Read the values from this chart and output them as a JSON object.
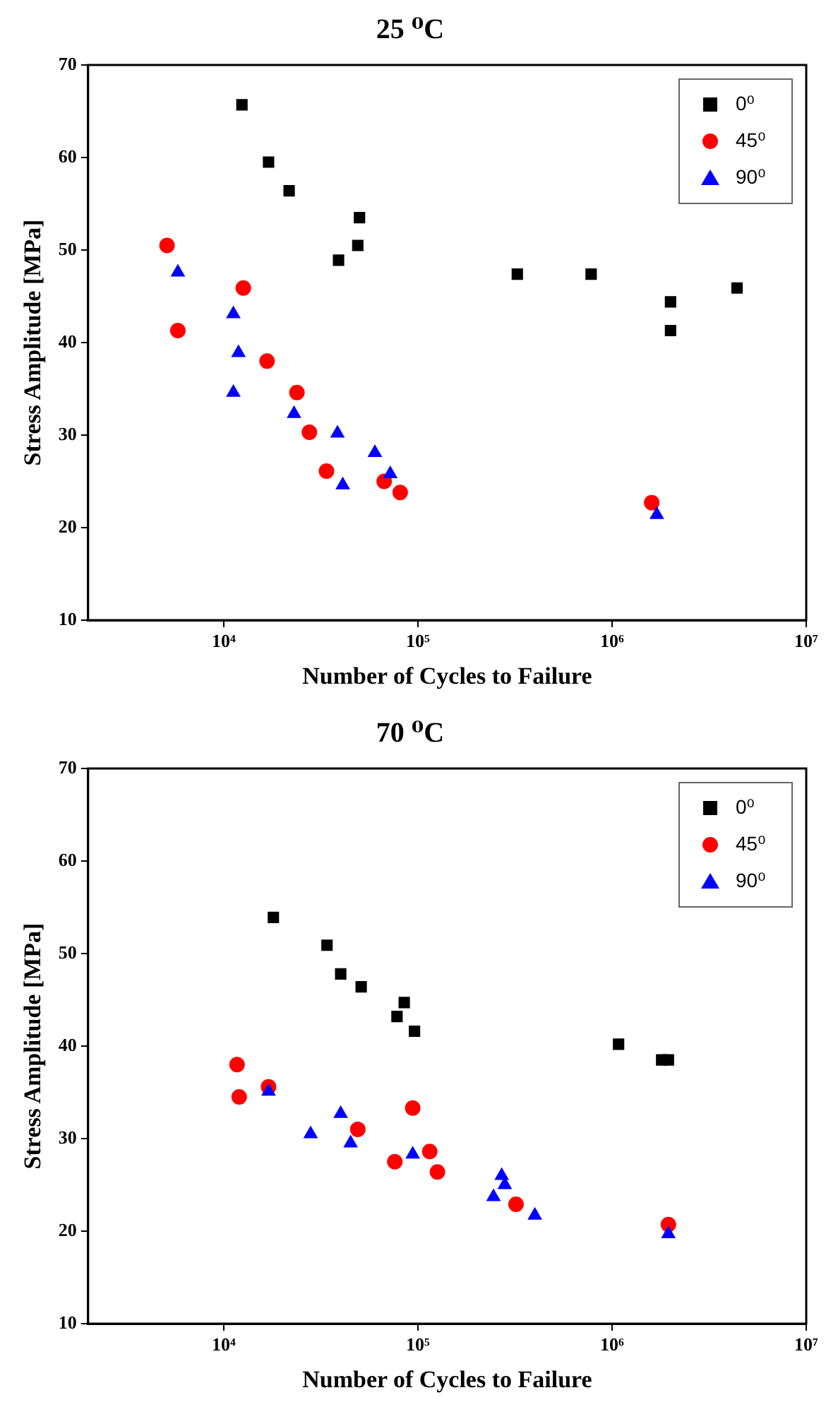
{
  "chart_data": [
    {
      "type": "scatter",
      "title": "25 ⁰C",
      "xlabel": "Number of Cycles to Failure",
      "ylabel": "Stress Amplitude [MPa]",
      "log": "x",
      "xlim": [
        2000,
        10000000
      ],
      "xticks": [
        {
          "value": 10000,
          "label": "10⁴"
        },
        {
          "value": 100000,
          "label": "10⁵"
        },
        {
          "value": 1000000,
          "label": "10⁶"
        },
        {
          "value": 10000000,
          "label": "10⁷"
        }
      ],
      "ylim": [
        10,
        70
      ],
      "yticks": [
        10,
        20,
        30,
        40,
        50,
        60,
        70
      ],
      "grid": false,
      "legend": "top right",
      "series": [
        {
          "name": "0⁰",
          "color": "#000000",
          "marker": "square",
          "x": [
            12400,
            17000,
            21700,
            50000,
            49000,
            39000,
            325000,
            780000,
            2000000,
            2000000,
            4400000
          ],
          "values": [
            65.7,
            59.5,
            56.4,
            53.5,
            50.5,
            48.9,
            47.4,
            47.4,
            44.4,
            41.3,
            45.9
          ]
        },
        {
          "name": "45⁰",
          "color": "#ff0000",
          "marker": "circle",
          "x": [
            5100,
            5800,
            12600,
            16700,
            23800,
            27600,
            33800,
            67000,
            81000,
            1600000
          ],
          "values": [
            50.5,
            41.3,
            45.9,
            38.0,
            34.6,
            30.3,
            26.1,
            25.0,
            23.8,
            22.7
          ]
        },
        {
          "name": "90⁰",
          "color": "#0000ff",
          "marker": "triangle",
          "x": [
            5800,
            11200,
            11900,
            11200,
            23000,
            38500,
            41000,
            60000,
            72000,
            1700000
          ],
          "values": [
            47.6,
            43.1,
            38.9,
            34.6,
            32.3,
            30.2,
            24.6,
            28.1,
            25.8,
            21.4
          ]
        }
      ]
    },
    {
      "type": "scatter",
      "title": "70 ⁰C",
      "xlabel": "Number of Cycles to Failure",
      "ylabel": "Stress Amplitude [MPa]",
      "log": "x",
      "xlim": [
        2000,
        10000000
      ],
      "xticks": [
        {
          "value": 10000,
          "label": "10⁴"
        },
        {
          "value": 100000,
          "label": "10⁵"
        },
        {
          "value": 1000000,
          "label": "10⁶"
        },
        {
          "value": 10000000,
          "label": "10⁷"
        }
      ],
      "ylim": [
        10,
        70
      ],
      "yticks": [
        10,
        20,
        30,
        40,
        50,
        60,
        70
      ],
      "grid": false,
      "legend": "top right",
      "series": [
        {
          "name": "0⁰",
          "color": "#000000",
          "marker": "square",
          "x": [
            18000,
            34000,
            40000,
            51000,
            85000,
            78000,
            96000,
            1080000,
            1800000,
            1950000
          ],
          "values": [
            53.9,
            50.9,
            47.8,
            46.4,
            44.7,
            43.2,
            41.6,
            40.2,
            38.5,
            38.5
          ]
        },
        {
          "name": "45⁰",
          "color": "#ff0000",
          "marker": "circle",
          "x": [
            11700,
            12000,
            17000,
            49000,
            94000,
            76000,
            115000,
            126000,
            320000,
            1950000
          ],
          "values": [
            38.0,
            34.5,
            35.6,
            31.0,
            33.3,
            27.5,
            28.6,
            26.4,
            22.9,
            20.7
          ]
        },
        {
          "name": "90⁰",
          "color": "#0000ff",
          "marker": "triangle",
          "x": [
            17000,
            28000,
            40000,
            45000,
            94000,
            270000,
            280000,
            245000,
            400000,
            1950000
          ],
          "values": [
            35.1,
            30.5,
            32.7,
            29.5,
            28.3,
            26.0,
            25.0,
            23.7,
            21.7,
            19.7
          ]
        }
      ]
    }
  ]
}
